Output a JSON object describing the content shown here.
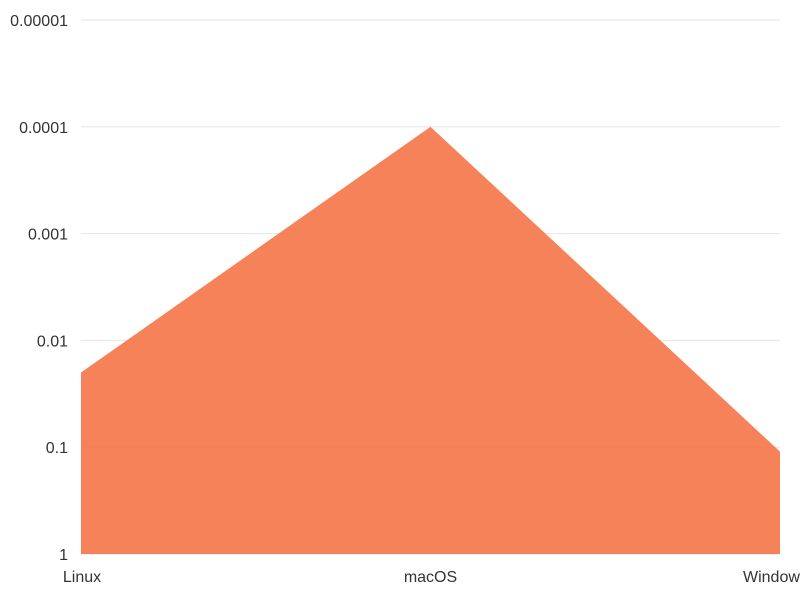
{
  "chart_data": {
    "type": "area",
    "title": "",
    "xlabel": "",
    "ylabel": "",
    "categories": [
      "Linux",
      "macOS",
      "Windows"
    ],
    "series": [
      {
        "values": [
          0.02,
          0.0001,
          0.11
        ],
        "color": "#f5774b"
      }
    ],
    "yscale": "log",
    "yaxis_reversed": true,
    "ylim": [
      1,
      1e-05
    ],
    "yticks": [
      1,
      0.1,
      0.01,
      0.001,
      0.0001,
      1e-05
    ],
    "ytick_labels": [
      "1",
      "0.1",
      "0.01",
      "0.001",
      "0.0001",
      "0.00001"
    ],
    "grid": true,
    "legend": "none"
  }
}
